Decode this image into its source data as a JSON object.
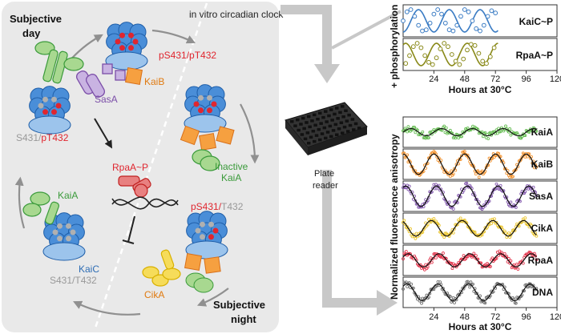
{
  "cycle": {
    "day_label": [
      "Subjective",
      "day"
    ],
    "night_label": [
      "Subjective",
      "night"
    ],
    "in_vitro_label": "in vitro circadian clock",
    "states": {
      "top": "pS431/pT432",
      "left_s": "S431/",
      "left_t": "pT432",
      "right_s": "pS431/",
      "right_t": "T432",
      "bottom_left": "S431/T432"
    },
    "proteins": {
      "sasa": "SasA",
      "kaib": "KaiB",
      "inactive_kaia": [
        "Inactive",
        "KaiA"
      ],
      "kaia": "KaiA",
      "kaic": "KaiC",
      "cika": "CikA",
      "rpaa": "RpaA~P"
    }
  },
  "plate_reader": [
    "Plate",
    "reader"
  ],
  "colors": {
    "kaic_blue": "#2e6db4",
    "red": "#e0262f",
    "sasa": "#7b4ea8",
    "kaib": "#f08a20",
    "kaia": "#3a9a3a",
    "cika": "#e8b800",
    "dna": "#555555"
  },
  "chart_data": [
    {
      "type": "scatter",
      "ylabel": "+ phosphorylation",
      "xlabel": "",
      "x_ticks": [
        24,
        48,
        72,
        96,
        120
      ],
      "xlim": [
        0,
        120
      ],
      "series": [
        {
          "name": "KaiC~P",
          "color": "#3b7cc4",
          "x": [
            0,
            3,
            6,
            9,
            12,
            15,
            18,
            21,
            24,
            27,
            30,
            33,
            36,
            39,
            42,
            45,
            48,
            51,
            54,
            57,
            60,
            63,
            66,
            69,
            72
          ],
          "y": [
            0.5,
            0.9,
            1.0,
            0.7,
            0.3,
            0.05,
            0.1,
            0.4,
            0.8,
            1.0,
            0.8,
            0.4,
            0.1,
            0.05,
            0.3,
            0.7,
            1.0,
            0.9,
            0.5,
            0.15,
            0.05,
            0.3,
            0.7,
            0.95,
            0.85
          ]
        },
        {
          "name": "RpaA~P",
          "color": "#8a8a1a",
          "x": [
            2,
            5,
            8,
            11,
            14,
            17,
            20,
            23,
            26,
            29,
            32,
            35,
            38,
            41,
            44,
            47,
            50,
            53,
            56,
            59,
            62,
            65,
            68,
            71
          ],
          "y": [
            0.1,
            0.45,
            0.85,
            1.0,
            0.8,
            0.45,
            0.15,
            0.05,
            0.35,
            0.75,
            1.0,
            0.85,
            0.5,
            0.2,
            0.05,
            0.3,
            0.7,
            0.95,
            0.9,
            0.55,
            0.2,
            0.1,
            0.4,
            0.8
          ]
        }
      ]
    },
    {
      "type": "scatter",
      "ylabel": "Normalized fluorescence anisotropy",
      "xlabel": "Hours at 30°C",
      "x_ticks": [
        24,
        48,
        72,
        96,
        120
      ],
      "xlim": [
        0,
        120
      ],
      "series": [
        {
          "name": "KaiA",
          "color": "#5cb848",
          "period": 24,
          "phase": 0,
          "amp": 0.3
        },
        {
          "name": "KaiB",
          "color": "#f08a20",
          "period": 24,
          "phase": 6,
          "amp": 0.85
        },
        {
          "name": "SasA",
          "color": "#7b4ea8",
          "period": 24,
          "phase": 4,
          "amp": 0.85
        },
        {
          "name": "CikA",
          "color": "#e8c020",
          "period": 24,
          "phase": 8,
          "amp": 0.65
        },
        {
          "name": "RpaA",
          "color": "#e0263f",
          "period": 24,
          "phase": 2,
          "amp": 0.55
        },
        {
          "name": "DNA",
          "color": "#666666",
          "period": 24,
          "phase": 3,
          "amp": 0.7
        }
      ]
    }
  ],
  "top_xlabel": "Hours at 30°C"
}
